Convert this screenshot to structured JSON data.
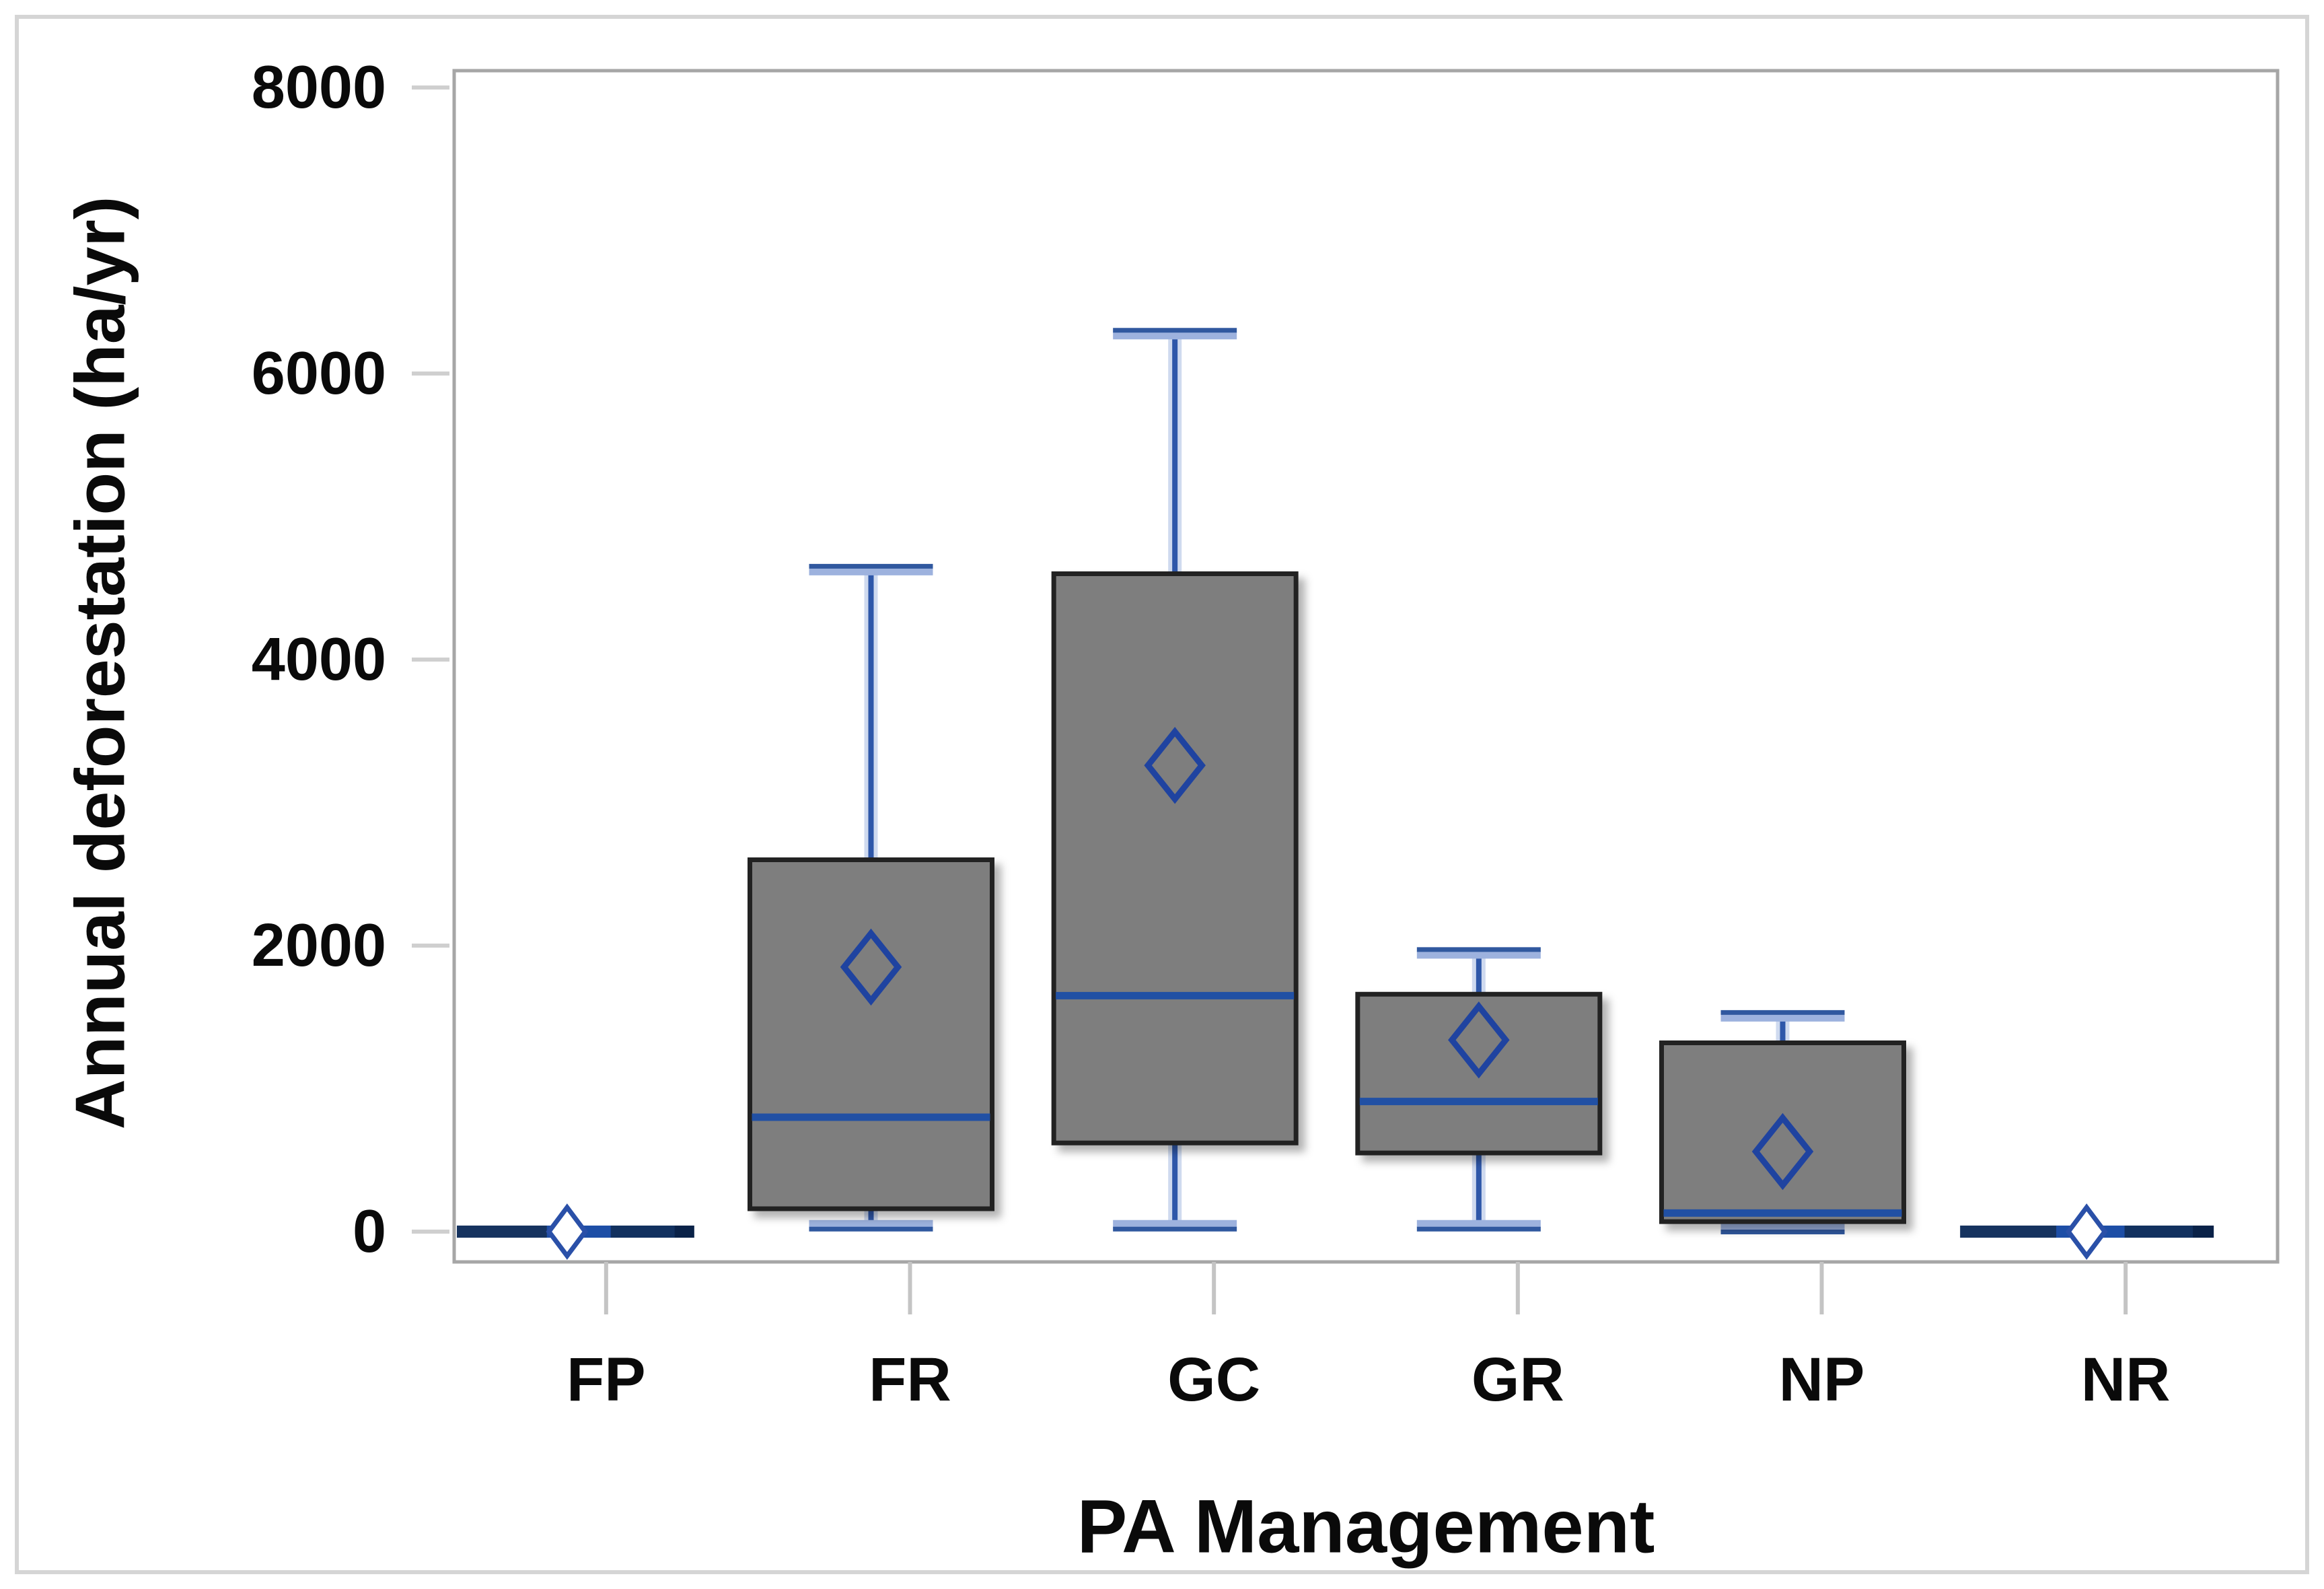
{
  "chart_data": {
    "type": "box",
    "title": "",
    "xlabel": "PA Management",
    "ylabel": "Annual deforestation (ha/yr)",
    "categories": [
      "FP",
      "FR",
      "GC",
      "GR",
      "NP",
      "NR"
    ],
    "y_axis": {
      "min": 0,
      "max": 8000,
      "ticks": [
        0,
        2000,
        4000,
        6000,
        8000
      ],
      "tick_labels": [
        "0",
        "2000",
        "4000",
        "6000",
        "8000"
      ]
    },
    "grid": false,
    "legend": null,
    "series": [
      {
        "category": "FP",
        "min": 0,
        "q1": 0,
        "median": 0,
        "q3": 0,
        "max": 0,
        "mean": 0,
        "flat": true
      },
      {
        "category": "FR",
        "min": 20,
        "q1": 160,
        "median": 800,
        "q3": 2600,
        "max": 4650,
        "mean": 1850,
        "flat": false
      },
      {
        "category": "GC",
        "min": 20,
        "q1": 620,
        "median": 1650,
        "q3": 4600,
        "max": 6300,
        "mean": 3260,
        "flat": false
      },
      {
        "category": "GR",
        "min": 20,
        "q1": 550,
        "median": 910,
        "q3": 1660,
        "max": 1970,
        "mean": 1340,
        "flat": false
      },
      {
        "category": "NP",
        "min": 0,
        "q1": 70,
        "median": 130,
        "q3": 1320,
        "max": 1530,
        "mean": 560,
        "flat": false
      },
      {
        "category": "NR",
        "min": 0,
        "q1": 0,
        "median": 0,
        "q3": 0,
        "max": 0,
        "mean": 0,
        "flat": true
      }
    ],
    "colors": {
      "background": "#FFFFFF",
      "figure_border": "#D5D5D5",
      "frame": "#A6A6A6",
      "y_tick": "#CFCFCF",
      "x_tick": "#C4C4C4",
      "text": "#0A0A0A",
      "box_fill": "#7E7E7E",
      "box_border": "#232323",
      "median": "#2150A4",
      "whisker": "#2E57A9",
      "whisker_halo": "#A9BCE2",
      "cap_light": "#9DB2DE",
      "cap_dark": "#30589F",
      "mean_diamond": "#1F43A0",
      "zero_bar_segments": [
        "#16335F",
        "#1D4EA6",
        "#12315F",
        "#0A2248"
      ],
      "zero_diamond_fill": "#FFFFFF",
      "zero_diamond_stroke": "#2A50A8"
    }
  }
}
